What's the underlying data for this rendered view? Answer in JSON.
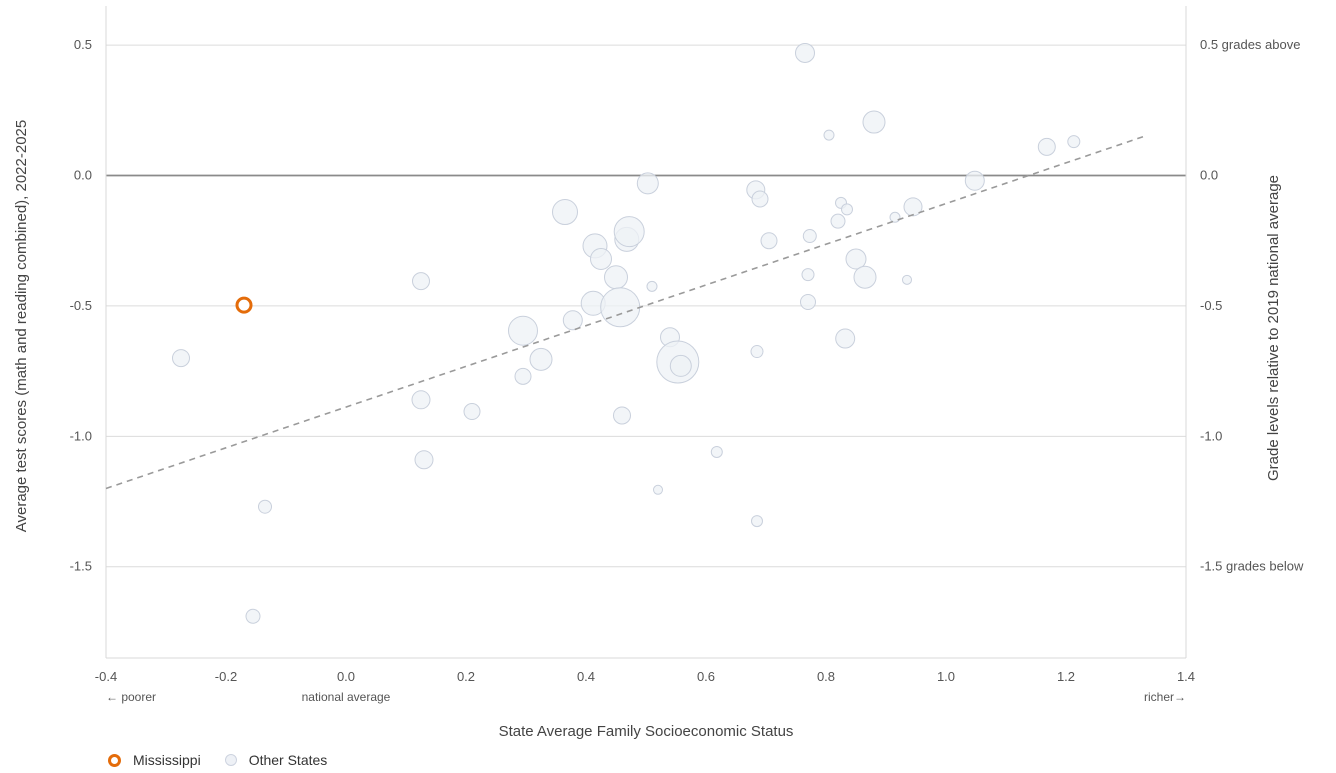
{
  "chart_data": {
    "type": "scatter",
    "xlabel": "State Average Family Socioeconomic Status",
    "ylabel_left": "Average test scores (math and reading combined), 2022-2025",
    "ylabel_right": "Grade levels relative to 2019 national average",
    "xlim": [
      -0.4,
      1.4
    ],
    "ylim": [
      -1.85,
      0.65
    ],
    "x_ticks": [
      "-0.4",
      "-0.2",
      "0.0",
      "0.2",
      "0.4",
      "0.6",
      "0.8",
      "1.0",
      "1.2",
      "1.4"
    ],
    "x_tick_values": [
      -0.4,
      -0.2,
      0.0,
      0.2,
      0.4,
      0.6,
      0.8,
      1.0,
      1.2,
      1.4
    ],
    "y_ticks": [
      "0.5",
      "0.0",
      "-0.5",
      "-1.0",
      "-1.5"
    ],
    "y_tick_values": [
      0.5,
      0.0,
      -0.5,
      -1.0,
      -1.5
    ],
    "right_ticks": [
      "0.5 grades above",
      "0.0",
      "-0.5",
      "-1.0",
      "-1.5 grades below"
    ],
    "x_notes": [
      {
        "label": "← poorer",
        "x": -0.4,
        "anchor": "start"
      },
      {
        "label": "national average",
        "x": 0.0,
        "anchor": "middle"
      },
      {
        "label": "richer→",
        "x": 1.4,
        "anchor": "end"
      }
    ],
    "grid": true,
    "trendline": {
      "x": [
        -0.4,
        1.33
      ],
      "y": [
        -1.2,
        0.15
      ]
    },
    "highlight": {
      "name": "Mississippi",
      "x": -0.17,
      "y": -0.497,
      "color": "#e46c0a"
    },
    "series": [
      {
        "name": "Other States",
        "fill": "#eef1f6",
        "stroke": "#c9d0dc",
        "points": [
          {
            "x": -0.275,
            "y": -0.7,
            "s": 8.5
          },
          {
            "x": -0.155,
            "y": -1.69,
            "s": 7
          },
          {
            "x": -0.135,
            "y": -1.27,
            "s": 6.5
          },
          {
            "x": 0.125,
            "y": -0.405,
            "s": 8.5
          },
          {
            "x": 0.125,
            "y": -0.86,
            "s": 9
          },
          {
            "x": 0.13,
            "y": -1.09,
            "s": 9
          },
          {
            "x": 0.21,
            "y": -0.905,
            "s": 8
          },
          {
            "x": 0.295,
            "y": -0.595,
            "s": 14.5
          },
          {
            "x": 0.295,
            "y": -0.77,
            "s": 8
          },
          {
            "x": 0.325,
            "y": -0.705,
            "s": 11
          },
          {
            "x": 0.365,
            "y": -0.14,
            "s": 12.5
          },
          {
            "x": 0.378,
            "y": -0.555,
            "s": 9.5
          },
          {
            "x": 0.412,
            "y": -0.49,
            "s": 12
          },
          {
            "x": 0.415,
            "y": -0.27,
            "s": 12
          },
          {
            "x": 0.425,
            "y": -0.32,
            "s": 10.5
          },
          {
            "x": 0.45,
            "y": -0.39,
            "s": 11.5
          },
          {
            "x": 0.457,
            "y": -0.505,
            "s": 19.5
          },
          {
            "x": 0.46,
            "y": -0.92,
            "s": 8.5
          },
          {
            "x": 0.468,
            "y": -0.245,
            "s": 12
          },
          {
            "x": 0.472,
            "y": -0.215,
            "s": 15
          },
          {
            "x": 0.503,
            "y": -0.03,
            "s": 10.5
          },
          {
            "x": 0.51,
            "y": -0.425,
            "s": 5
          },
          {
            "x": 0.52,
            "y": -1.205,
            "s": 4.5
          },
          {
            "x": 0.54,
            "y": -0.62,
            "s": 9.5
          },
          {
            "x": 0.553,
            "y": -0.715,
            "s": 21
          },
          {
            "x": 0.558,
            "y": -0.73,
            "s": 10.5
          },
          {
            "x": 0.618,
            "y": -1.06,
            "s": 5.5
          },
          {
            "x": 0.683,
            "y": -0.055,
            "s": 9
          },
          {
            "x": 0.685,
            "y": -0.675,
            "s": 6
          },
          {
            "x": 0.685,
            "y": -1.325,
            "s": 5.5
          },
          {
            "x": 0.69,
            "y": -0.09,
            "s": 8
          },
          {
            "x": 0.705,
            "y": -0.25,
            "s": 8
          },
          {
            "x": 0.765,
            "y": 0.47,
            "s": 9.5
          },
          {
            "x": 0.77,
            "y": -0.38,
            "s": 6
          },
          {
            "x": 0.77,
            "y": -0.485,
            "s": 7.5
          },
          {
            "x": 0.773,
            "y": -0.232,
            "s": 6.5
          },
          {
            "x": 0.805,
            "y": 0.155,
            "s": 5
          },
          {
            "x": 0.82,
            "y": -0.175,
            "s": 7
          },
          {
            "x": 0.825,
            "y": -0.105,
            "s": 5.5
          },
          {
            "x": 0.832,
            "y": -0.625,
            "s": 9.5
          },
          {
            "x": 0.835,
            "y": -0.13,
            "s": 5.5
          },
          {
            "x": 0.85,
            "y": -0.32,
            "s": 10
          },
          {
            "x": 0.865,
            "y": -0.39,
            "s": 11
          },
          {
            "x": 0.88,
            "y": 0.205,
            "s": 11
          },
          {
            "x": 0.915,
            "y": -0.16,
            "s": 5
          },
          {
            "x": 0.935,
            "y": -0.4,
            "s": 4.5
          },
          {
            "x": 0.945,
            "y": -0.12,
            "s": 9
          },
          {
            "x": 1.048,
            "y": -0.02,
            "s": 9.5
          },
          {
            "x": 1.168,
            "y": 0.11,
            "s": 8.5
          },
          {
            "x": 1.213,
            "y": 0.13,
            "s": 6
          }
        ]
      }
    ]
  },
  "legend": {
    "mississippi_label": "Mississippi",
    "other_label": "Other States"
  }
}
